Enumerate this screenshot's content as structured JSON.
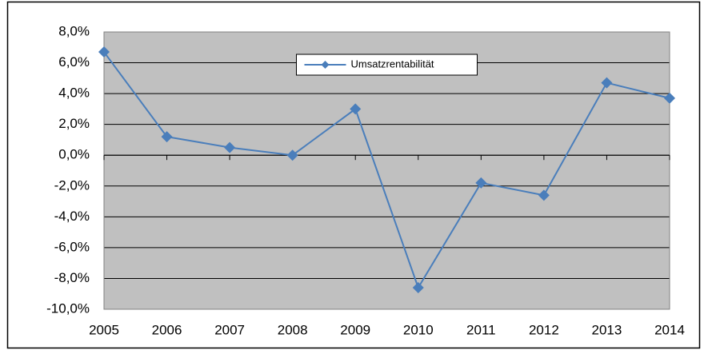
{
  "chart_data": {
    "type": "line",
    "categories": [
      "2005",
      "2006",
      "2007",
      "2008",
      "2009",
      "2010",
      "2011",
      "2012",
      "2013",
      "2014"
    ],
    "series": [
      {
        "name": "Umsatzrentabilität",
        "color": "#4a7ebb",
        "values": [
          6.7,
          1.2,
          0.5,
          0.0,
          3.0,
          -8.6,
          -1.8,
          -2.6,
          4.7,
          3.7
        ]
      }
    ],
    "ylim": [
      -10,
      8
    ],
    "yticks": [
      {
        "value": -10,
        "label": "-10,0%"
      },
      {
        "value": -8,
        "label": "-8,0%"
      },
      {
        "value": -6,
        "label": "-6,0%"
      },
      {
        "value": -4,
        "label": "-4,0%"
      },
      {
        "value": -2,
        "label": "-2,0%"
      },
      {
        "value": 0,
        "label": "0,0%"
      },
      {
        "value": 2,
        "label": "2,0%"
      },
      {
        "value": 4,
        "label": "4,0%"
      },
      {
        "value": 6,
        "label": "6,0%"
      },
      {
        "value": 8,
        "label": "8,0%"
      }
    ],
    "grid": true,
    "legend": "top",
    "plot_background": "#c0c0c0"
  }
}
